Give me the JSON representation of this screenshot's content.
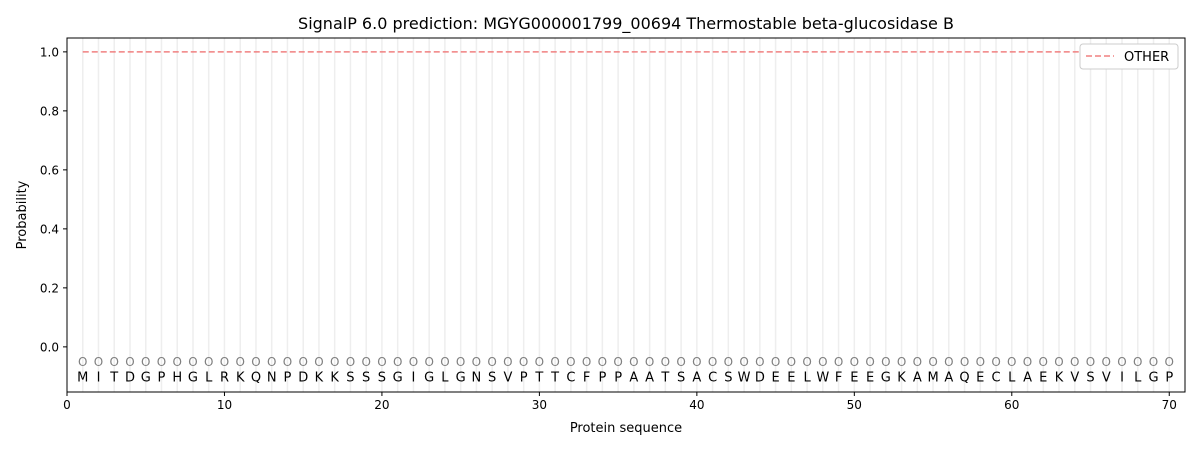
{
  "chart_data": {
    "type": "line",
    "title": "SignalP 6.0 prediction: MGYG000001799_00694 Thermostable beta-glucosidase B",
    "xlabel": "Protein sequence",
    "ylabel": "Probability",
    "xlim": [
      0,
      71
    ],
    "ylim": [
      -0.153,
      1.047
    ],
    "xticks": [
      0,
      10,
      20,
      30,
      40,
      50,
      60,
      70
    ],
    "yticks": [
      "0.0",
      "0.2",
      "0.4",
      "0.6",
      "0.8",
      "1.0"
    ],
    "grid": "vertical lines at each residue",
    "legend_position": "top-right",
    "sequence": "MITDGPHGLRKQNPDKKSSSGIGLGNSVPTTCFPPAATSACSWDEELWFEEGKAMAQECLAEKVSVILGP",
    "series": [
      {
        "name": "OTHER",
        "color": "#f08080",
        "style": "dashed",
        "x_range": [
          1,
          70
        ],
        "value": 1.0
      }
    ],
    "residue_labels": {
      "label": "O",
      "y": -0.05
    }
  }
}
